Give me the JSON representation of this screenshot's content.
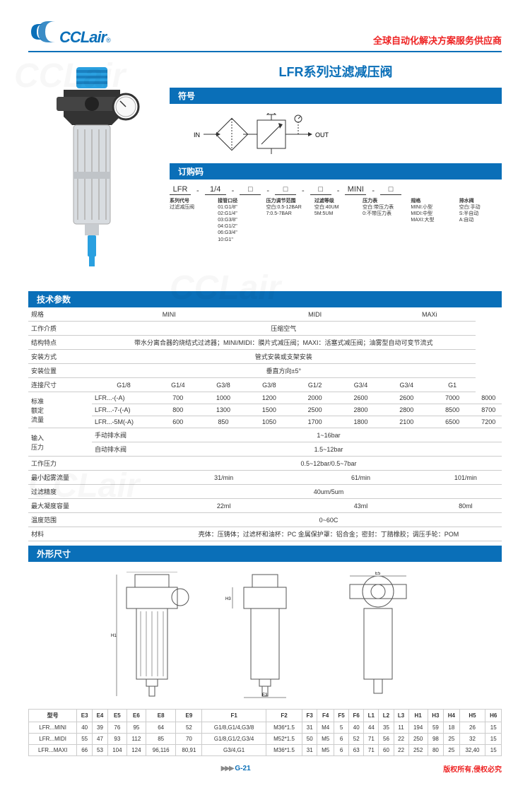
{
  "header": {
    "brand": "CCLair",
    "reg": "®",
    "slogan": "全球自动化解决方案服务供应商"
  },
  "title": "LFR系列过滤减压阀",
  "section_symbol": "符号",
  "symbol_in": "IN",
  "symbol_out": "OUT",
  "section_order": "订购码",
  "order": {
    "slots": [
      "LFR",
      "-",
      "1/4",
      "-",
      "□",
      "-",
      "□",
      "-",
      "□",
      "-",
      "MINI",
      "-",
      "□"
    ],
    "cols": [
      {
        "h": "系列代号",
        "lines": [
          "过滤减压阀"
        ]
      },
      {
        "h": "接管口径",
        "lines": [
          "01:G1/8\"",
          "02:G1/4\"",
          "03:G3/8\"",
          "04:G1/2\"",
          "06:G3/4\"",
          "10:G1\""
        ]
      },
      {
        "h": "压力调节范围",
        "lines": [
          "空白:0.5-12BAR",
          "7:0.5-7BAR"
        ]
      },
      {
        "h": "过滤等级",
        "lines": [
          "空白:40UM",
          "5M:5UM"
        ]
      },
      {
        "h": "压力表",
        "lines": [
          "空白:带压力表",
          "0:不带压力表"
        ]
      },
      {
        "h": "规格",
        "lines": [
          "MINI:小型",
          "MIDI:中型",
          "MAXI:大型"
        ]
      },
      {
        "h": "排水阀",
        "lines": [
          "空白:手动",
          "S:半自动",
          "A:自动"
        ]
      }
    ]
  },
  "section_spec": "技术参数",
  "spec": {
    "head": [
      "规格",
      "MINI",
      "MIDI",
      "MAXi"
    ],
    "rows": [
      {
        "k": "工作介质",
        "span": "压缩空气"
      },
      {
        "k": "结构特点",
        "span": "带水分离合器的烧结式过滤器；MINI/MIDI：膜片式减压阀；MAXI：活塞式减压阀；油雾型自动可变节流式"
      },
      {
        "k": "安装方式",
        "span": "管式安装或支架安装"
      },
      {
        "k": "安装位置",
        "span": "垂直方向±5°"
      }
    ],
    "conn_row": {
      "k": "连接尺寸",
      "v": [
        "G1/8",
        "G1/4",
        "G3/8",
        "G3/8",
        "G1/2",
        "G3/4",
        "G3/4",
        "G1"
      ]
    },
    "flow_label": "标准\n额定\n流量",
    "flow": [
      {
        "k": "LFR...-(-A)",
        "v": [
          "700",
          "1000",
          "1200",
          "2000",
          "2600",
          "2600",
          "7000",
          "8000"
        ]
      },
      {
        "k": "LFR...-7-(-A)",
        "v": [
          "800",
          "1300",
          "1500",
          "2500",
          "2800",
          "2800",
          "8500",
          "8700"
        ]
      },
      {
        "k": "LFR...-5M(-A)",
        "v": [
          "600",
          "850",
          "1050",
          "1700",
          "1800",
          "2100",
          "6500",
          "7200"
        ]
      }
    ],
    "press_label": "输入\n压力",
    "press": [
      {
        "k": "手动排水阀",
        "span": "1~16bar"
      },
      {
        "k": "自动排水阀",
        "span": "1.5~12bar"
      }
    ],
    "rows2": [
      {
        "k": "工作压力",
        "span": "0.5~12bar/0.5~7bar"
      },
      {
        "k": "最小起雾流量",
        "v3": [
          "31/min",
          "61/min",
          "101/min"
        ]
      },
      {
        "k": "过滤精度",
        "span": "40um/5um"
      },
      {
        "k": "最大凝度容量",
        "v3": [
          "22ml",
          "43ml",
          "80ml"
        ]
      },
      {
        "k": "温度范围",
        "span": "0~60C"
      },
      {
        "k": "材料",
        "span": "壳体：压铸体；过滤杯和油杯：PC  金属保护罩：铝合金；密封：丁腈橡胶；调压手轮：POM"
      }
    ]
  },
  "section_dim": "外形尺寸",
  "dim_table": {
    "head": [
      "型号",
      "E3",
      "E4",
      "E5",
      "E6",
      "E8",
      "E9",
      "F1",
      "F2",
      "F3",
      "F4",
      "F5",
      "F6",
      "L1",
      "L2",
      "L3",
      "H1",
      "H3",
      "H4",
      "H5",
      "H6"
    ],
    "rows": [
      [
        "LFR...MINI",
        "40",
        "39",
        "76",
        "95",
        "64",
        "52",
        "G1/8,G1/4,G3/8",
        "M36*1.5",
        "31",
        "M4",
        "5",
        "40",
        "44",
        "35",
        "11",
        "194",
        "59",
        "18",
        "26",
        "15"
      ],
      [
        "LFR...MIDI",
        "55",
        "47",
        "93",
        "112",
        "85",
        "70",
        "G1/8,G1/2,G3/4",
        "M52*1.5",
        "50",
        "M5",
        "6",
        "52",
        "71",
        "56",
        "22",
        "250",
        "98",
        "25",
        "32",
        "15"
      ],
      [
        "LFR...MAXI",
        "66",
        "53",
        "104",
        "124",
        "96,116",
        "80,91",
        "G3/4,G1",
        "M36*1.5",
        "31",
        "M5",
        "6",
        "63",
        "71",
        "60",
        "22",
        "252",
        "80",
        "25",
        "32,40",
        "15"
      ]
    ]
  },
  "footer": {
    "arrow": "▶▶▶",
    "page": "G-21",
    "copy": "版权所有,侵权必究"
  },
  "colors": {
    "brand": "#0a6fb8",
    "accent": "#e22",
    "grid": "#ccc"
  }
}
